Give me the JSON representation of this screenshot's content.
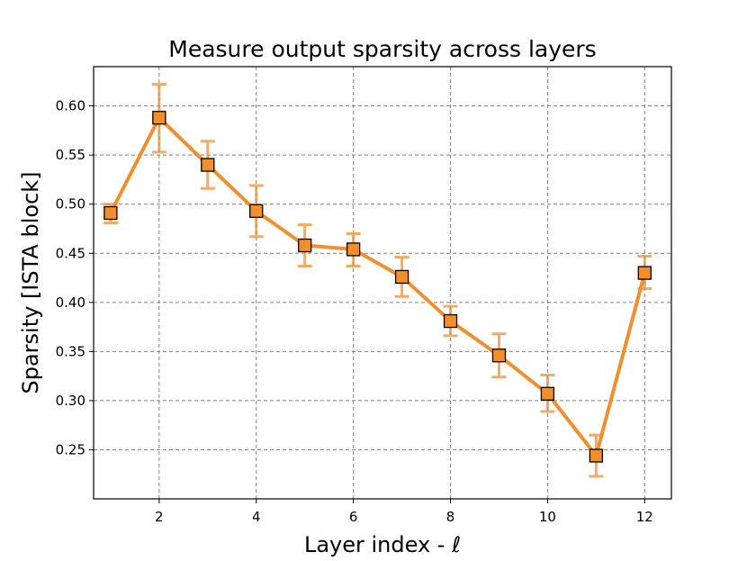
{
  "chart_data": {
    "type": "line",
    "title": "Measure output sparsity across layers",
    "xlabel": "Layer index - ℓ",
    "ylabel": "Sparsity [ISTA block]",
    "xlim": [
      0.65,
      12.55
    ],
    "ylim": [
      0.2,
      0.64
    ],
    "xticks": [
      2,
      4,
      6,
      8,
      10,
      12
    ],
    "yticks": [
      0.25,
      0.3,
      0.35,
      0.4,
      0.45,
      0.5,
      0.55,
      0.6
    ],
    "grid": true,
    "series": [
      {
        "x": [
          1,
          2,
          3,
          4,
          5,
          6,
          7,
          8,
          9,
          10,
          11,
          12
        ],
        "values": [
          0.491,
          0.588,
          0.54,
          0.493,
          0.458,
          0.454,
          0.426,
          0.381,
          0.346,
          0.307,
          0.244,
          0.43
        ],
        "err_low": [
          0.481,
          0.553,
          0.516,
          0.467,
          0.437,
          0.437,
          0.406,
          0.366,
          0.324,
          0.289,
          0.223,
          0.414
        ],
        "err_high": [
          0.5,
          0.622,
          0.564,
          0.519,
          0.479,
          0.47,
          0.446,
          0.396,
          0.368,
          0.326,
          0.265,
          0.447
        ],
        "color": "#f28e2b",
        "marker": "square"
      }
    ]
  }
}
